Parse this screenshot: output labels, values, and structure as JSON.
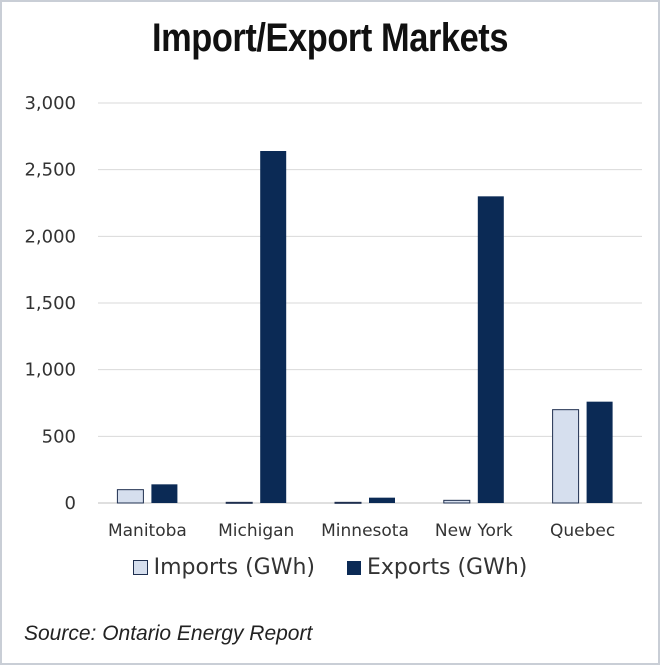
{
  "chart_data": {
    "type": "bar",
    "title": "Import/Export Markets",
    "categories": [
      "Manitoba",
      "Michigan",
      "Minnesota",
      "New York",
      "Quebec"
    ],
    "series": [
      {
        "name": "Imports (GWh)",
        "values": [
          100,
          5,
          5,
          20,
          700
        ],
        "color": "#d6dfee",
        "stroke": "#1f2f4f"
      },
      {
        "name": "Exports (GWh)",
        "values": [
          140,
          2640,
          40,
          2300,
          760
        ],
        "color": "#0b2a55",
        "stroke": "#0b2a55"
      }
    ],
    "ylim": [
      0,
      3000
    ],
    "yticks": [
      0,
      500,
      1000,
      1500,
      2000,
      2500,
      3000
    ],
    "ytick_labels": [
      "0",
      "500",
      "1,000",
      "1,500",
      "2,000",
      "2,500",
      "3,000"
    ],
    "grid": true,
    "gridline_color": "#d9d9d9",
    "legend_position": "bottom"
  },
  "source": "Source: Ontario Energy Report"
}
